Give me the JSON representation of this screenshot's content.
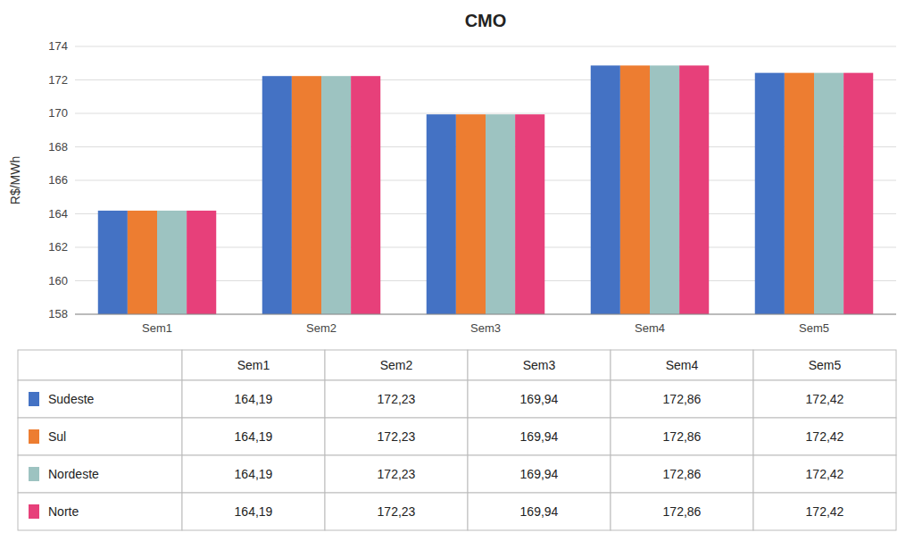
{
  "chart_data": {
    "type": "bar",
    "title": "CMO",
    "y_label": "R$/MWh",
    "categories": [
      "Sem1",
      "Sem2",
      "Sem3",
      "Sem4",
      "Sem5"
    ],
    "series": [
      {
        "name": "Sudeste",
        "color": "#4472C4",
        "values": [
          164.19,
          172.23,
          169.94,
          172.86,
          172.42
        ],
        "value_labels": [
          "164,19",
          "172,23",
          "169,94",
          "172,86",
          "172,42"
        ]
      },
      {
        "name": "Sul",
        "color": "#ED7D31",
        "values": [
          164.19,
          172.23,
          169.94,
          172.86,
          172.42
        ],
        "value_labels": [
          "164,19",
          "172,23",
          "169,94",
          "172,86",
          "172,42"
        ]
      },
      {
        "name": "Nordeste",
        "color": "#9DC3C1",
        "values": [
          164.19,
          172.23,
          169.94,
          172.86,
          172.42
        ],
        "value_labels": [
          "164,19",
          "172,23",
          "169,94",
          "172,86",
          "172,42"
        ]
      },
      {
        "name": "Norte",
        "color": "#E7407A",
        "values": [
          164.19,
          172.23,
          169.94,
          172.86,
          172.42
        ],
        "value_labels": [
          "164,19",
          "172,23",
          "169,94",
          "172,86",
          "172,42"
        ]
      }
    ],
    "ylim": [
      158,
      174
    ],
    "yticks": [
      158,
      160,
      162,
      164,
      166,
      168,
      170,
      172,
      174
    ],
    "grid": true
  }
}
